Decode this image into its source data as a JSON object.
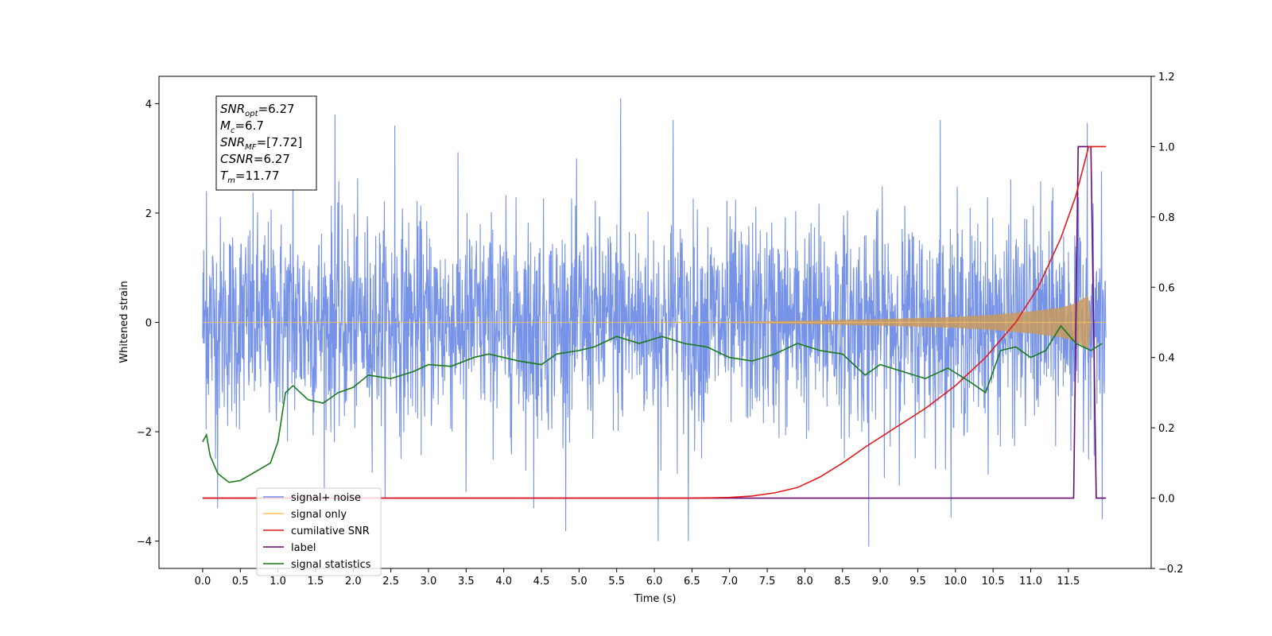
{
  "chart_data": {
    "type": "line",
    "title": "",
    "xlabel": "Time (s)",
    "ylabel": "Whitened strain",
    "xlim": [
      -0.58,
      12.6
    ],
    "ylim": [
      -4.5,
      4.5
    ],
    "y2lim": [
      -0.2,
      1.2
    ],
    "x_ticks": [
      0.0,
      0.5,
      1.0,
      1.5,
      2.0,
      2.5,
      3.0,
      3.5,
      4.0,
      4.5,
      5.0,
      5.5,
      6.0,
      6.5,
      7.0,
      7.5,
      8.0,
      8.5,
      9.0,
      9.5,
      10.0,
      10.5,
      11.0,
      11.5
    ],
    "x_tick_labels": [
      "0.0",
      "0.5",
      "1.0",
      "1.5",
      "2.0",
      "2.5",
      "3.0",
      "3.5",
      "4.0",
      "4.5",
      "5.0",
      "5.5",
      "6.0",
      "6.5",
      "7.0",
      "7.5",
      "8.0",
      "8.5",
      "9.0",
      "9.5",
      "10.0",
      "10.5",
      "11.0",
      "11.5"
    ],
    "y_ticks": [
      -4,
      -2,
      0,
      2,
      4
    ],
    "y_tick_labels": [
      "−4",
      "−2",
      "0",
      "2",
      "4"
    ],
    "y2_ticks": [
      -0.2,
      0.0,
      0.2,
      0.4,
      0.6,
      0.8,
      1.0,
      1.2
    ],
    "y2_tick_labels": [
      "−0.2",
      "0.0",
      "0.2",
      "0.4",
      "0.6",
      "0.8",
      "1.0",
      "1.2"
    ],
    "grid": false,
    "legend_position": "lower-left",
    "series": [
      {
        "name": "signal+ noise",
        "axis": "left",
        "color": "#6f8de6",
        "description": "dense noise, approx. ±1.5 std band, spikes to ~±4",
        "x_range": [
          0.0,
          12.0
        ],
        "spike_peaks": [
          {
            "x": 0.05,
            "y": 2.4
          },
          {
            "x": 0.2,
            "y": -3.4
          },
          {
            "x": 1.2,
            "y": 3.6
          },
          {
            "x": 1.76,
            "y": 3.8
          },
          {
            "x": 2.55,
            "y": 3.6
          },
          {
            "x": 3.5,
            "y": -3.1
          },
          {
            "x": 4.4,
            "y": -3.4
          },
          {
            "x": 5.55,
            "y": 4.1
          },
          {
            "x": 6.05,
            "y": -4.0
          },
          {
            "x": 6.45,
            "y": -4.0
          },
          {
            "x": 6.25,
            "y": 3.7
          },
          {
            "x": 8.85,
            "y": -4.1
          },
          {
            "x": 9.8,
            "y": 3.7
          },
          {
            "x": 11.75,
            "y": 3.65
          },
          {
            "x": 11.95,
            "y": -3.6
          }
        ]
      },
      {
        "name": "signal only",
        "axis": "left",
        "color": "#ffc25a",
        "envelope": [
          [
            0.0,
            0.0
          ],
          [
            5.0,
            0.0
          ],
          [
            7.0,
            0.01
          ],
          [
            8.0,
            0.03
          ],
          [
            9.0,
            0.06
          ],
          [
            10.0,
            0.1
          ],
          [
            10.5,
            0.14
          ],
          [
            11.0,
            0.2
          ],
          [
            11.4,
            0.27
          ],
          [
            11.6,
            0.35
          ],
          [
            11.77,
            0.5
          ],
          [
            11.8,
            0.0
          ],
          [
            12.0,
            0.0
          ]
        ]
      },
      {
        "name": "cumilative SNR",
        "axis": "right",
        "color": "#e31a1c",
        "x": [
          0.0,
          6.5,
          7.0,
          7.3,
          7.6,
          7.9,
          8.2,
          8.5,
          8.8,
          9.2,
          9.6,
          10.0,
          10.4,
          10.8,
          11.1,
          11.4,
          11.6,
          11.77,
          12.0
        ],
        "values": [
          0.0,
          0.0,
          0.002,
          0.006,
          0.015,
          0.03,
          0.06,
          0.1,
          0.145,
          0.2,
          0.255,
          0.32,
          0.4,
          0.5,
          0.6,
          0.74,
          0.86,
          1.0,
          1.0
        ]
      },
      {
        "name": "label",
        "axis": "right",
        "color": "#6a0a73",
        "x": [
          0.0,
          11.57,
          11.63,
          11.8,
          11.87,
          12.0
        ],
        "values": [
          0.0,
          0.0,
          1.0,
          1.0,
          0.0,
          0.0
        ]
      },
      {
        "name": "signal statistics",
        "axis": "right",
        "color": "#1a7a1a",
        "x": [
          0.0,
          0.05,
          0.1,
          0.2,
          0.35,
          0.5,
          0.7,
          0.9,
          1.0,
          1.1,
          1.2,
          1.4,
          1.6,
          1.8,
          2.0,
          2.2,
          2.5,
          2.8,
          3.0,
          3.3,
          3.6,
          3.8,
          4.0,
          4.2,
          4.5,
          4.7,
          5.0,
          5.2,
          5.5,
          5.8,
          6.1,
          6.4,
          6.7,
          7.0,
          7.3,
          7.6,
          7.9,
          8.2,
          8.5,
          8.8,
          9.0,
          9.3,
          9.6,
          9.9,
          10.2,
          10.4,
          10.6,
          10.8,
          11.0,
          11.2,
          11.4,
          11.6,
          11.8,
          11.95
        ],
        "values": [
          0.16,
          0.18,
          0.12,
          0.07,
          0.045,
          0.05,
          0.075,
          0.1,
          0.16,
          0.3,
          0.32,
          0.28,
          0.27,
          0.3,
          0.315,
          0.35,
          0.34,
          0.36,
          0.38,
          0.375,
          0.4,
          0.41,
          0.4,
          0.39,
          0.38,
          0.41,
          0.42,
          0.43,
          0.46,
          0.44,
          0.46,
          0.44,
          0.43,
          0.4,
          0.39,
          0.41,
          0.44,
          0.42,
          0.41,
          0.35,
          0.38,
          0.36,
          0.34,
          0.37,
          0.33,
          0.3,
          0.42,
          0.43,
          0.4,
          0.42,
          0.49,
          0.44,
          0.42,
          0.44
        ]
      }
    ],
    "legend": [
      "signal+ noise",
      "signal only",
      "cumilative SNR",
      "label",
      "signal statistics"
    ],
    "annotation_lines": [
      {
        "base": "SNR",
        "sub": "opt",
        "rest": "=6.27"
      },
      {
        "base": "M",
        "sub": "c",
        "rest": "=6.7"
      },
      {
        "base": "SNR",
        "sub": "MF",
        "rest": "=[7.72]"
      },
      {
        "base": "CSNR",
        "sub": "",
        "rest": "=6.27"
      },
      {
        "base": "T",
        "sub": "m",
        "rest": "=11.77"
      }
    ]
  }
}
